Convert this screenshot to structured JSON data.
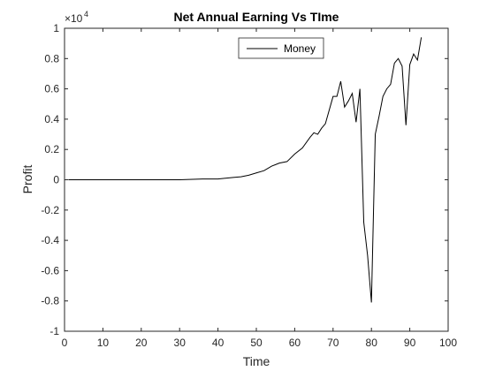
{
  "chart_data": {
    "type": "line",
    "title": "Net Annual Earning Vs TIme",
    "xlabel": "Time",
    "ylabel": "Profit",
    "y_exponent_label": "×10",
    "y_exponent_power": "4",
    "xlim": [
      0,
      100
    ],
    "ylim": [
      -1,
      1
    ],
    "y_scale_factor": 10000,
    "xticks": [
      0,
      10,
      20,
      30,
      40,
      50,
      60,
      70,
      80,
      90,
      100
    ],
    "yticks": [
      -1,
      -0.8,
      -0.6,
      -0.4,
      -0.2,
      0,
      0.2,
      0.4,
      0.6,
      0.8,
      1
    ],
    "ytick_labels": [
      "-1",
      "-0.8",
      "-0.6",
      "-0.4",
      "-0.2",
      "0",
      "0.2",
      "0.4",
      "0.6",
      "0.8",
      "1"
    ],
    "grid": false,
    "legend_position": "top-center",
    "series": [
      {
        "name": "Money",
        "color": "#000000",
        "x": [
          1,
          10,
          20,
          30,
          36,
          40,
          42,
          44,
          46,
          48,
          50,
          52,
          54,
          55,
          56,
          58,
          60,
          62,
          64,
          65,
          66,
          67,
          68,
          70,
          71,
          72,
          73,
          74,
          75,
          76,
          77,
          78,
          79,
          80,
          81,
          82,
          83,
          84,
          85,
          86,
          87,
          88,
          89,
          90,
          91,
          92,
          93
        ],
        "y": [
          0,
          0,
          0,
          0,
          0.005,
          0.005,
          0.01,
          0.015,
          0.02,
          0.03,
          0.045,
          0.06,
          0.09,
          0.1,
          0.11,
          0.12,
          0.17,
          0.21,
          0.28,
          0.31,
          0.3,
          0.34,
          0.37,
          0.55,
          0.55,
          0.65,
          0.48,
          0.52,
          0.57,
          0.38,
          0.6,
          -0.28,
          -0.5,
          -0.81,
          0.3,
          0.42,
          0.55,
          0.6,
          0.63,
          0.77,
          0.8,
          0.75,
          0.36,
          0.76,
          0.83,
          0.79,
          0.94
        ]
      }
    ]
  }
}
